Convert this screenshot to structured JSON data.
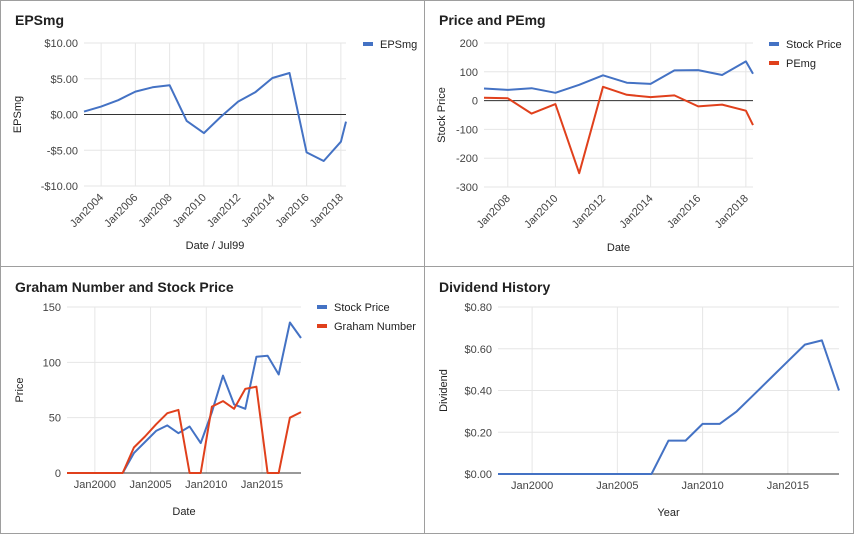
{
  "chart_data": [
    {
      "type": "line",
      "title": "EPSmg",
      "xlabel": "Date / Jul99",
      "ylabel": "EPSmg",
      "x": [
        2003,
        2004,
        2005,
        2006,
        2007,
        2008,
        2009,
        2010,
        2011,
        2012,
        2013,
        2014,
        2015,
        2016,
        2017,
        2018,
        2018.3
      ],
      "series": [
        {
          "name": "EPSmg",
          "color": "#4472c4",
          "values": [
            0.4,
            1.1,
            2.0,
            3.2,
            3.8,
            4.1,
            -0.9,
            -2.6,
            -0.3,
            1.8,
            3.1,
            5.1,
            5.8,
            -5.3,
            -6.5,
            -3.8,
            -1.0
          ]
        }
      ],
      "xticks": [
        2004,
        2006,
        2008,
        2010,
        2012,
        2014,
        2016,
        2018
      ],
      "xtick_labels": [
        "Jan2004",
        "Jan2006",
        "Jan2008",
        "Jan2010",
        "Jan2012",
        "Jan2014",
        "Jan2016",
        "Jan2018"
      ],
      "xlim": [
        2003,
        2018.3
      ],
      "ylim": [
        -10,
        10
      ],
      "yticks": [
        10,
        5,
        0,
        -5,
        -10
      ],
      "ytick_labels": [
        "$10.00",
        "$5.00",
        "$0.00",
        "-$5.00",
        "-$10.00"
      ],
      "legend": "top-right",
      "grid": true
    },
    {
      "type": "line",
      "title": "Price and PEmg",
      "xlabel": "Date",
      "ylabel": "Stock Price",
      "x": [
        2007,
        2008,
        2009,
        2010,
        2011,
        2012,
        2013,
        2014,
        2015,
        2016,
        2017,
        2018,
        2018.3
      ],
      "series": [
        {
          "name": "Stock Price",
          "color": "#4472c4",
          "values": [
            42,
            37,
            43,
            27,
            55,
            88,
            62,
            58,
            105,
            106,
            89,
            136,
            93
          ]
        },
        {
          "name": "PEmg",
          "color": "#e0401c",
          "values": [
            10,
            8,
            -45,
            -12,
            -252,
            48,
            20,
            12,
            18,
            -20,
            -14,
            -35,
            -85
          ]
        }
      ],
      "xticks": [
        2008,
        2010,
        2012,
        2014,
        2016,
        2018
      ],
      "xtick_labels": [
        "Jan2008",
        "Jan2010",
        "Jan2012",
        "Jan2014",
        "Jan2016",
        "Jan2018"
      ],
      "xlim": [
        2007,
        2018.3
      ],
      "ylim": [
        -300,
        200
      ],
      "yticks": [
        200,
        100,
        0,
        -100,
        -200,
        -300
      ],
      "ytick_labels": [
        "200",
        "100",
        "0",
        "-100",
        "-200",
        "-300"
      ],
      "legend": "top-right",
      "grid": true
    },
    {
      "type": "line",
      "title": "Graham Number and Stock Price",
      "xlabel": "Date",
      "ylabel": "Price",
      "x": [
        1997.5,
        1998.5,
        1999.5,
        2000.5,
        2001.5,
        2002.5,
        2003.5,
        2004.5,
        2005.5,
        2006.5,
        2007.5,
        2008.5,
        2009.5,
        2010.5,
        2011.5,
        2012.5,
        2013.5,
        2014.5,
        2015.5,
        2016.5,
        2017.5,
        2018.5
      ],
      "series": [
        {
          "name": "Stock Price",
          "color": "#4472c4",
          "values": [
            0,
            0,
            0,
            0,
            0,
            0,
            18,
            28,
            38,
            43,
            36,
            42,
            27,
            55,
            88,
            62,
            58,
            105,
            106,
            89,
            136,
            122
          ]
        },
        {
          "name": "Graham Number",
          "color": "#e0401c",
          "values": [
            0,
            0,
            0,
            0,
            0,
            0,
            23,
            33,
            44,
            54,
            57,
            0,
            0,
            60,
            65,
            58,
            76,
            78,
            0,
            0,
            50,
            55
          ]
        }
      ],
      "xticks": [
        2000,
        2005,
        2010,
        2015
      ],
      "xtick_labels": [
        "Jan2000",
        "Jan2005",
        "Jan2010",
        "Jan2015"
      ],
      "xlim": [
        1997.5,
        2018.5
      ],
      "ylim": [
        0,
        150
      ],
      "yticks": [
        150,
        100,
        50,
        0
      ],
      "ytick_labels": [
        "150",
        "100",
        "50",
        "0"
      ],
      "legend": "top-right",
      "grid": true
    },
    {
      "type": "line",
      "title": "Dividend History",
      "xlabel": "Year",
      "ylabel": "Dividend",
      "x": [
        1998,
        1999,
        2000,
        2001,
        2002,
        2003,
        2004,
        2005,
        2006,
        2007,
        2008,
        2009,
        2010,
        2011,
        2012,
        2013,
        2014,
        2015,
        2016,
        2017,
        2018
      ],
      "series": [
        {
          "name": "Dividend",
          "color": "#4472c4",
          "values": [
            0,
            0,
            0,
            0,
            0,
            0,
            0,
            0,
            0,
            0,
            0.16,
            0.16,
            0.24,
            0.24,
            0.3,
            0.38,
            0.46,
            0.54,
            0.62,
            0.64,
            0.4
          ]
        }
      ],
      "xticks": [
        2000,
        2005,
        2010,
        2015
      ],
      "xtick_labels": [
        "Jan2000",
        "Jan2005",
        "Jan2010",
        "Jan2015"
      ],
      "xlim": [
        1998,
        2018
      ],
      "ylim": [
        0,
        0.8
      ],
      "yticks": [
        0.8,
        0.6,
        0.4,
        0.2,
        0
      ],
      "ytick_labels": [
        "$0.80",
        "$0.60",
        "$0.40",
        "$0.20",
        "$0.00"
      ],
      "legend": "none",
      "grid": true
    }
  ]
}
